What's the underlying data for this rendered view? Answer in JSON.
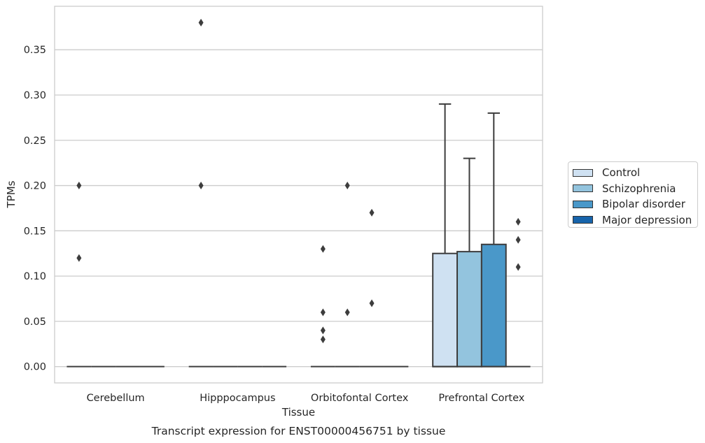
{
  "chart_data": {
    "type": "box",
    "title": "",
    "caption": "Transcript expression for ENST00000456751 by tissue",
    "xlabel": "Tissue",
    "ylabel": "TPMs",
    "ylim": [
      -0.018,
      0.398
    ],
    "yticks": [
      0.0,
      0.05,
      0.1,
      0.15,
      0.2,
      0.25,
      0.3,
      0.35
    ],
    "ytick_labels": [
      "0.00",
      "0.05",
      "0.10",
      "0.15",
      "0.20",
      "0.25",
      "0.30",
      "0.35"
    ],
    "grid": true,
    "legend_position": "right",
    "categories": [
      "Cerebellum",
      "Hipppocampus",
      "Orbitofontal Cortex",
      "Prefrontal Cortex"
    ],
    "series": [
      {
        "name": "Control",
        "color": "#cfe1f2",
        "boxes": [
          {
            "q1": 0,
            "median": 0,
            "q3": 0,
            "whisker_low": 0,
            "whisker_high": 0,
            "outliers": [
              0.2,
              0.12
            ]
          },
          {
            "q1": 0,
            "median": 0,
            "q3": 0,
            "whisker_low": 0,
            "whisker_high": 0,
            "outliers": [
              0.38,
              0.2
            ]
          },
          {
            "q1": 0,
            "median": 0,
            "q3": 0,
            "whisker_low": 0,
            "whisker_high": 0,
            "outliers": [
              0.13,
              0.06,
              0.03,
              0.04
            ]
          },
          {
            "q1": 0,
            "median": 0,
            "q3": 0.125,
            "whisker_low": 0,
            "whisker_high": 0.29,
            "outliers": []
          }
        ]
      },
      {
        "name": "Schizophrenia",
        "color": "#93c4de",
        "boxes": [
          {
            "q1": 0,
            "median": 0,
            "q3": 0,
            "whisker_low": 0,
            "whisker_high": 0,
            "outliers": []
          },
          {
            "q1": 0,
            "median": 0,
            "q3": 0,
            "whisker_low": 0,
            "whisker_high": 0,
            "outliers": []
          },
          {
            "q1": 0,
            "median": 0,
            "q3": 0,
            "whisker_low": 0,
            "whisker_high": 0,
            "outliers": [
              0.2,
              0.06
            ]
          },
          {
            "q1": 0,
            "median": 0,
            "q3": 0.127,
            "whisker_low": 0,
            "whisker_high": 0.23,
            "outliers": []
          }
        ]
      },
      {
        "name": "Bipolar disorder",
        "color": "#4a98c9",
        "boxes": [
          {
            "q1": 0,
            "median": 0,
            "q3": 0,
            "whisker_low": 0,
            "whisker_high": 0,
            "outliers": []
          },
          {
            "q1": 0,
            "median": 0,
            "q3": 0,
            "whisker_low": 0,
            "whisker_high": 0,
            "outliers": []
          },
          {
            "q1": 0,
            "median": 0,
            "q3": 0,
            "whisker_low": 0,
            "whisker_high": 0,
            "outliers": [
              0.17,
              0.07
            ]
          },
          {
            "q1": 0,
            "median": 0,
            "q3": 0.135,
            "whisker_low": 0,
            "whisker_high": 0.28,
            "outliers": []
          }
        ]
      },
      {
        "name": "Major depression",
        "color": "#1764ab",
        "boxes": [
          {
            "q1": 0,
            "median": 0,
            "q3": 0,
            "whisker_low": 0,
            "whisker_high": 0,
            "outliers": []
          },
          {
            "q1": 0,
            "median": 0,
            "q3": 0,
            "whisker_low": 0,
            "whisker_high": 0,
            "outliers": []
          },
          {
            "q1": 0,
            "median": 0,
            "q3": 0,
            "whisker_low": 0,
            "whisker_high": 0,
            "outliers": []
          },
          {
            "q1": 0,
            "median": 0,
            "q3": 0,
            "whisker_low": 0,
            "whisker_high": 0,
            "outliers": [
              0.16,
              0.14,
              0.11
            ]
          }
        ]
      }
    ]
  }
}
